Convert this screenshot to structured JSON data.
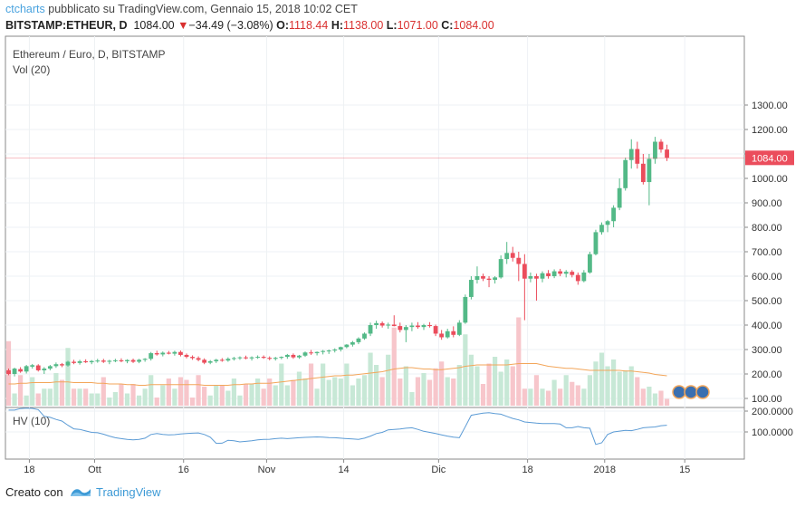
{
  "header": {
    "user": "ctcharts",
    "published": "pubblicato su TradingView.com, Gennaio 15, 2018 10:02 CET",
    "symbol": "BITSTAMP:ETHEUR, D",
    "last": "1084.00",
    "change": "−34.49 (−3.08%)",
    "o_label": "O:",
    "o_value": "1118.44",
    "h_label": "H:",
    "h_value": "1138.00",
    "l_label": "L:",
    "l_value": "1071.00",
    "c_label": "C:",
    "c_value": "1084.00"
  },
  "chart_data": [
    {
      "type": "candlestick",
      "title": "Ethereum / Euro, D, BITSTAMP",
      "subtitle": "Vol (20)",
      "last_price_label": "1084.00",
      "ylim": [
        100,
        1300
      ],
      "y_ticks": [
        "1300.00",
        "1200.00",
        "1100.00",
        "1000.00",
        "900.00",
        "800.00",
        "700.00",
        "600.00",
        "500.00",
        "400.00",
        "300.00",
        "200.00",
        "100.00"
      ],
      "x_ticks": [
        "18",
        "Ott",
        "16",
        "Nov",
        "14",
        "Dic",
        "18",
        "2018",
        "15"
      ],
      "colors": {
        "up": "#53b987",
        "down": "#eb4d5c",
        "up_vol": "#c7e8d6",
        "down_vol": "#f7c6cb",
        "vol_ma": "#f3a65a"
      },
      "candles": [
        [
          215,
          222,
          195,
          200
        ],
        [
          200,
          226,
          190,
          222
        ],
        [
          220,
          228,
          205,
          210
        ],
        [
          210,
          237,
          202,
          232
        ],
        [
          230,
          241,
          222,
          236
        ],
        [
          235,
          240,
          210,
          215
        ],
        [
          215,
          228,
          200,
          222
        ],
        [
          222,
          237,
          215,
          232
        ],
        [
          232,
          247,
          225,
          240
        ],
        [
          240,
          245,
          228,
          235
        ],
        [
          235,
          254,
          230,
          250
        ],
        [
          250,
          258,
          240,
          245
        ],
        [
          245,
          258,
          238,
          252
        ],
        [
          252,
          260,
          245,
          248
        ],
        [
          248,
          257,
          240,
          253
        ],
        [
          253,
          262,
          246,
          255
        ],
        [
          255,
          262,
          245,
          250
        ],
        [
          250,
          258,
          240,
          254
        ],
        [
          254,
          262,
          248,
          256
        ],
        [
          256,
          264,
          248,
          252
        ],
        [
          252,
          260,
          244,
          257
        ],
        [
          257,
          263,
          245,
          250
        ],
        [
          250,
          262,
          244,
          258
        ],
        [
          258,
          265,
          250,
          262
        ],
        [
          262,
          290,
          255,
          285
        ],
        [
          285,
          295,
          275,
          280
        ],
        [
          280,
          292,
          272,
          287
        ],
        [
          287,
          294,
          280,
          283
        ],
        [
          283,
          295,
          275,
          290
        ],
        [
          290,
          296,
          272,
          278
        ],
        [
          278,
          284,
          264,
          270
        ],
        [
          270,
          276,
          258,
          265
        ],
        [
          265,
          272,
          252,
          258
        ],
        [
          258,
          264,
          240,
          246
        ],
        [
          246,
          257,
          240,
          252
        ],
        [
          252,
          262,
          245,
          258
        ],
        [
          258,
          265,
          250,
          255
        ],
        [
          255,
          268,
          250,
          262
        ],
        [
          262,
          270,
          255,
          265
        ],
        [
          265,
          272,
          258,
          268
        ],
        [
          268,
          275,
          260,
          264
        ],
        [
          264,
          272,
          255,
          268
        ],
        [
          268,
          276,
          262,
          270
        ],
        [
          270,
          276,
          262,
          266
        ],
        [
          266,
          272,
          256,
          262
        ],
        [
          262,
          270,
          255,
          266
        ],
        [
          266,
          272,
          260,
          270
        ],
        [
          270,
          282,
          262,
          278
        ],
        [
          278,
          284,
          262,
          268
        ],
        [
          268,
          278,
          262,
          275
        ],
        [
          275,
          292,
          270,
          288
        ],
        [
          288,
          298,
          278,
          285
        ],
        [
          285,
          292,
          276,
          290
        ],
        [
          290,
          298,
          280,
          294
        ],
        [
          294,
          300,
          282,
          296
        ],
        [
          296,
          305,
          288,
          300
        ],
        [
          300,
          312,
          292,
          310
        ],
        [
          310,
          322,
          305,
          320
        ],
        [
          320,
          335,
          312,
          330
        ],
        [
          330,
          350,
          322,
          345
        ],
        [
          345,
          370,
          340,
          365
        ],
        [
          365,
          410,
          355,
          400
        ],
        [
          400,
          418,
          385,
          408
        ],
        [
          408,
          415,
          390,
          398
        ],
        [
          398,
          410,
          385,
          402
        ],
        [
          402,
          440,
          395,
          396
        ],
        [
          396,
          410,
          370,
          380
        ],
        [
          380,
          400,
          330,
          392
        ],
        [
          392,
          410,
          375,
          398
        ],
        [
          398,
          412,
          385,
          392
        ],
        [
          392,
          405,
          380,
          400
        ],
        [
          400,
          412,
          390,
          396
        ],
        [
          396,
          402,
          355,
          365
        ],
        [
          365,
          380,
          340,
          350
        ],
        [
          350,
          385,
          345,
          375
        ],
        [
          375,
          395,
          350,
          360
        ],
        [
          360,
          420,
          355,
          410
        ],
        [
          410,
          525,
          405,
          515
        ],
        [
          515,
          600,
          505,
          585
        ],
        [
          585,
          640,
          570,
          600
        ],
        [
          600,
          610,
          580,
          590
        ],
        [
          590,
          600,
          555,
          585
        ],
        [
          585,
          600,
          570,
          595
        ],
        [
          595,
          685,
          590,
          670
        ],
        [
          670,
          740,
          650,
          695
        ],
        [
          695,
          720,
          660,
          675
        ],
        [
          675,
          700,
          580,
          650
        ],
        [
          650,
          690,
          420,
          590
        ],
        [
          590,
          615,
          575,
          600
        ],
        [
          600,
          610,
          500,
          590
        ],
        [
          590,
          620,
          575,
          612
        ],
        [
          612,
          625,
          590,
          600
        ],
        [
          600,
          628,
          592,
          620
        ],
        [
          620,
          630,
          600,
          610
        ],
        [
          610,
          625,
          595,
          618
        ],
        [
          618,
          625,
          595,
          605
        ],
        [
          605,
          615,
          565,
          580
        ],
        [
          580,
          625,
          575,
          615
        ],
        [
          615,
          700,
          610,
          690
        ],
        [
          690,
          790,
          685,
          780
        ],
        [
          780,
          820,
          770,
          810
        ],
        [
          810,
          830,
          780,
          825
        ],
        [
          825,
          890,
          800,
          880
        ],
        [
          880,
          1000,
          870,
          960
        ],
        [
          960,
          1085,
          950,
          1075
        ],
        [
          1075,
          1160,
          1040,
          1120
        ],
        [
          1120,
          1150,
          1040,
          1060
        ],
        [
          1060,
          1100,
          975,
          985
        ],
        [
          985,
          1100,
          890,
          1080
        ],
        [
          1080,
          1170,
          1060,
          1150
        ],
        [
          1150,
          1160,
          1105,
          1118
        ],
        [
          1118,
          1138,
          1071,
          1084
        ]
      ],
      "volumes": [
        95,
        18,
        45,
        15,
        42,
        18,
        25,
        25,
        48,
        38,
        85,
        25,
        25,
        25,
        18,
        18,
        42,
        12,
        20,
        32,
        18,
        32,
        15,
        25,
        45,
        12,
        30,
        40,
        25,
        42,
        38,
        12,
        45,
        28,
        15,
        30,
        30,
        22,
        40,
        15,
        32,
        32,
        40,
        25,
        40,
        30,
        62,
        30,
        38,
        50,
        40,
        62,
        25,
        62,
        38,
        42,
        40,
        62,
        30,
        40,
        45,
        78,
        60,
        42,
        75,
        115,
        40,
        58,
        20,
        42,
        48,
        38,
        55,
        65,
        42,
        40,
        60,
        105,
        75,
        58,
        32,
        62,
        72,
        50,
        68,
        58,
        130,
        25,
        25,
        45,
        25,
        22,
        38,
        25,
        45,
        35,
        30,
        25,
        45,
        65,
        78,
        58,
        68,
        50,
        52,
        58,
        42,
        25,
        28,
        18,
        22,
        10
      ],
      "vol_ma": [
        32,
        32,
        33,
        33,
        34,
        34,
        34,
        34,
        35,
        35,
        35,
        34,
        34,
        34,
        34,
        33,
        33,
        32,
        32,
        32,
        31,
        31,
        30,
        30,
        31,
        31,
        31,
        31,
        31,
        31,
        31,
        31,
        31,
        30,
        30,
        30,
        30,
        30,
        31,
        31,
        32,
        32,
        33,
        33,
        33,
        34,
        35,
        36,
        37,
        38,
        39,
        40,
        41,
        42,
        43,
        44,
        44,
        45,
        45,
        46,
        47,
        48,
        49,
        50,
        52,
        54,
        55,
        56,
        56,
        55,
        54,
        54,
        53,
        53,
        54,
        55,
        56,
        58,
        59,
        60,
        60,
        60,
        60,
        60,
        60,
        61,
        62,
        62,
        62,
        62,
        60,
        58,
        57,
        56,
        55,
        55,
        54,
        53,
        52,
        52,
        52,
        52,
        52,
        52,
        51,
        51,
        50,
        49,
        48,
        46,
        45,
        44
      ]
    },
    {
      "type": "line",
      "title": "HV (10)",
      "y_ticks": [
        "200.0000",
        "100.0000"
      ],
      "ylim": [
        0,
        230
      ],
      "values": [
        205,
        205,
        212,
        214,
        213,
        207,
        175,
        170,
        160,
        152,
        132,
        115,
        112,
        105,
        98,
        96,
        89,
        80,
        72,
        68,
        64,
        62,
        64,
        70,
        88,
        92,
        88,
        86,
        87,
        90,
        92,
        94,
        95,
        88,
        75,
        45,
        46,
        60,
        58,
        52,
        55,
        58,
        62,
        64,
        65,
        68,
        70,
        68,
        70,
        72,
        74,
        75,
        76,
        75,
        73,
        72,
        70,
        68,
        66,
        64,
        70,
        80,
        92,
        98,
        110,
        112,
        114,
        118,
        120,
        112,
        103,
        98,
        92,
        86,
        80,
        75,
        72,
        125,
        180,
        185,
        190,
        192,
        188,
        185,
        175,
        165,
        158,
        148,
        145,
        142,
        140,
        140,
        140,
        138,
        120,
        120,
        126,
        120,
        118,
        40,
        48,
        88,
        100,
        104,
        108,
        106,
        112,
        120,
        122,
        124,
        130,
        132
      ]
    }
  ],
  "footer": {
    "created_with": "Creato con",
    "brand": "TradingView"
  }
}
